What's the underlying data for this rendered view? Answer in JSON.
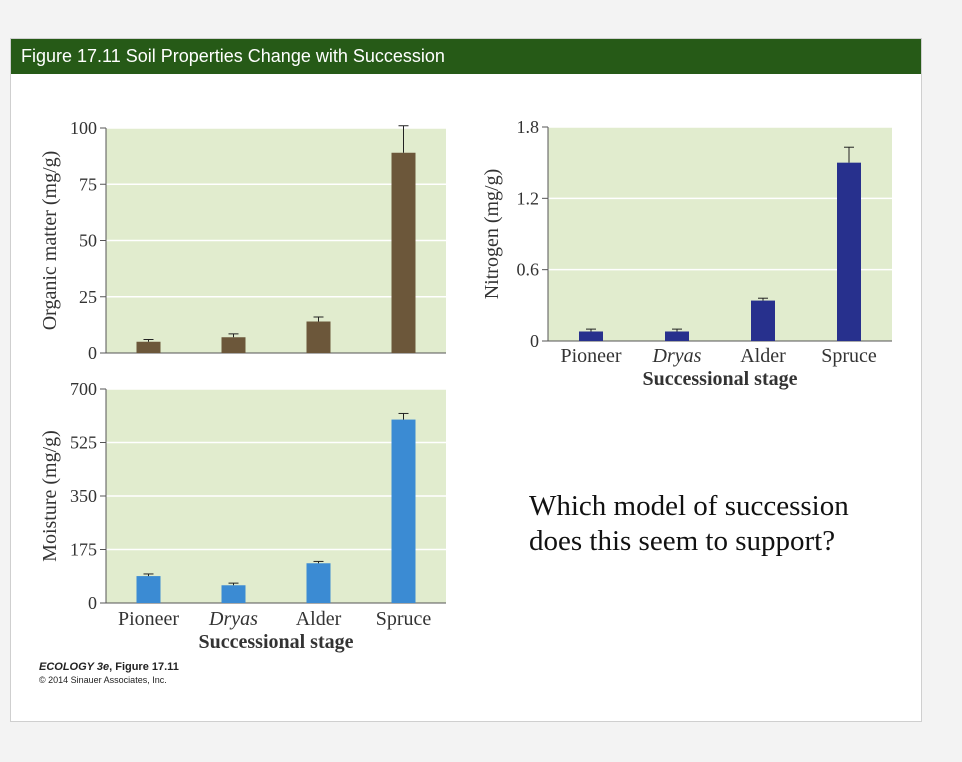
{
  "header": {
    "title": "Figure 17.11 Soil Properties Change with Succession"
  },
  "question": "Which model of succession does this seem to support?",
  "credit": {
    "book": "ECOLOGY 3e",
    "figure": ", Figure 17.11",
    "copyright": "© 2014 Sinauer Associates, Inc."
  },
  "colors": {
    "plot_bg": "#e1ecce",
    "organic": "#6c573a",
    "nitrogen": "#27308d",
    "moisture": "#3b8bd3"
  },
  "chart_data": [
    {
      "type": "bar",
      "categories": [
        "Pioneer",
        "Dryas",
        "Alder",
        "Spruce"
      ],
      "values": [
        5,
        7,
        14,
        89
      ],
      "errors": [
        1,
        1.5,
        2,
        12
      ],
      "ylabel": "Organic matter (mg/g)",
      "xlabel": "",
      "ylim": [
        0,
        100
      ],
      "yticks": [
        0,
        25,
        50,
        75,
        100
      ],
      "grid": true,
      "show_category_labels": false
    },
    {
      "type": "bar",
      "categories": [
        "Pioneer",
        "Dryas",
        "Alder",
        "Spruce"
      ],
      "values": [
        0.08,
        0.08,
        0.34,
        1.5
      ],
      "errors": [
        0.02,
        0.02,
        0.02,
        0.13
      ],
      "ylabel": "Nitrogen (mg/g)",
      "xlabel": "Successional stage",
      "ylim": [
        0,
        1.8
      ],
      "yticks": [
        0,
        0.6,
        1.2,
        1.8
      ],
      "ytick_labels": [
        "0",
        "0.6",
        "1.2",
        "1.8"
      ],
      "grid": true,
      "show_category_labels": true
    },
    {
      "type": "bar",
      "categories": [
        "Pioneer",
        "Dryas",
        "Alder",
        "Spruce"
      ],
      "values": [
        88,
        58,
        130,
        600
      ],
      "errors": [
        7,
        7,
        6,
        20
      ],
      "ylabel": "Moisture (mg/g)",
      "xlabel": "Successional stage",
      "ylim": [
        0,
        700
      ],
      "yticks": [
        0,
        175,
        350,
        525,
        700
      ],
      "grid": true,
      "show_category_labels": true
    }
  ]
}
